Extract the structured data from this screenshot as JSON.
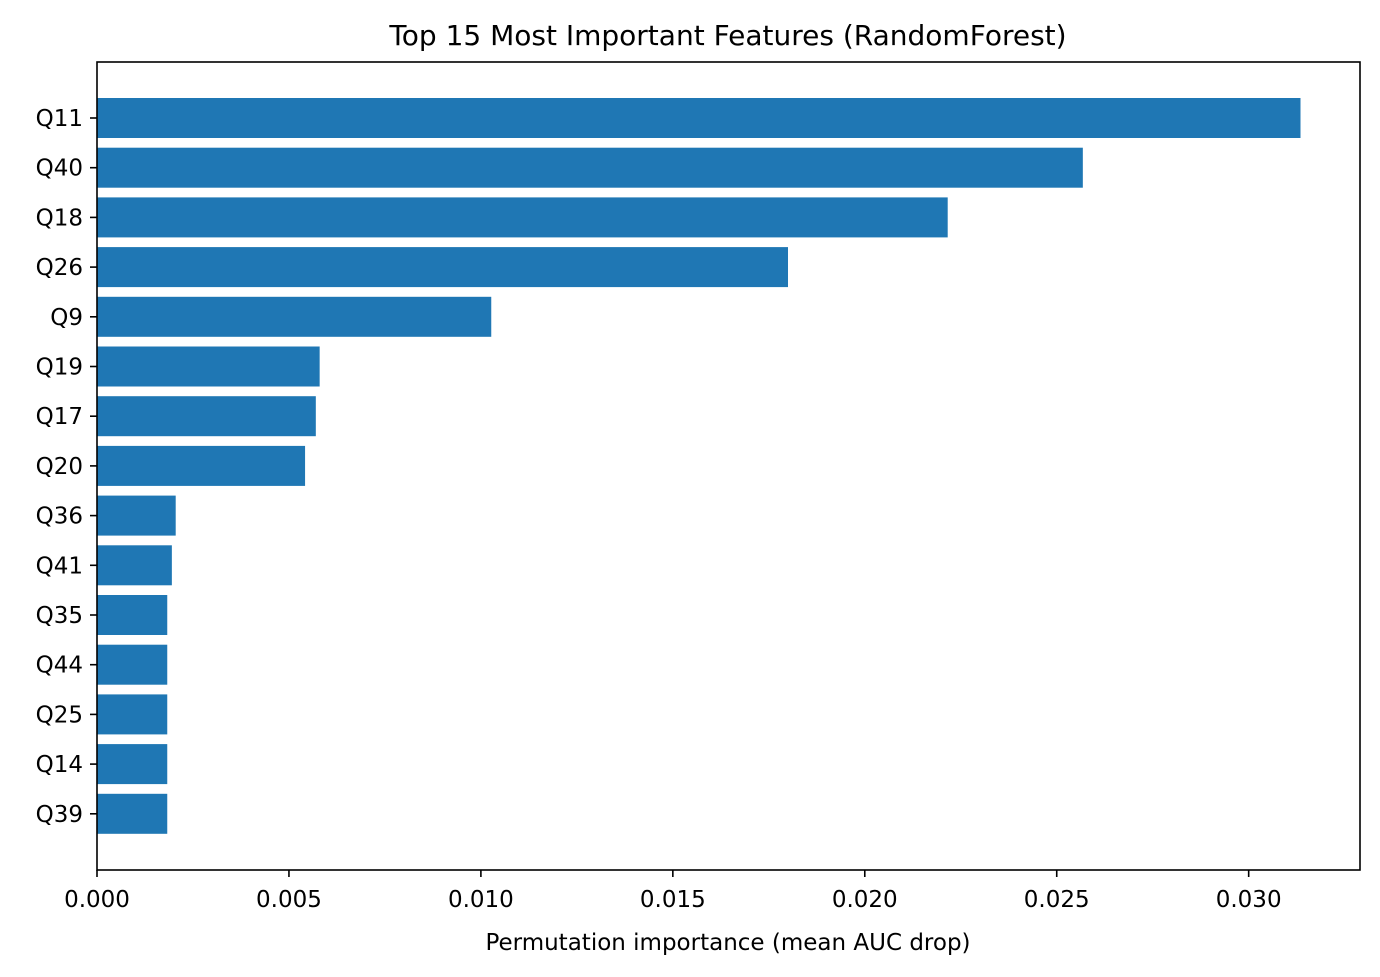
{
  "chart_data": {
    "type": "bar",
    "orientation": "horizontal",
    "title": "Top 15 Most Important Features (RandomForest)",
    "xlabel": "Permutation importance (mean AUC drop)",
    "ylabel": "",
    "categories": [
      "Q11",
      "Q40",
      "Q18",
      "Q26",
      "Q9",
      "Q19",
      "Q17",
      "Q20",
      "Q36",
      "Q41",
      "Q35",
      "Q44",
      "Q25",
      "Q14",
      "Q39"
    ],
    "values": [
      0.03135,
      0.02568,
      0.02216,
      0.018,
      0.01027,
      0.0058,
      0.0057,
      0.00542,
      0.00205,
      0.00195,
      0.00183,
      0.00183,
      0.00183,
      0.00183,
      0.00183
    ],
    "xlim": [
      0,
      0.0329
    ],
    "xticks": [
      0.0,
      0.005,
      0.01,
      0.015,
      0.02,
      0.025,
      0.03
    ],
    "xtick_labels": [
      "0.000",
      "0.005",
      "0.010",
      "0.015",
      "0.020",
      "0.025",
      "0.030"
    ],
    "bar_color": "#1f77b4",
    "grid": false,
    "legend": "none"
  }
}
